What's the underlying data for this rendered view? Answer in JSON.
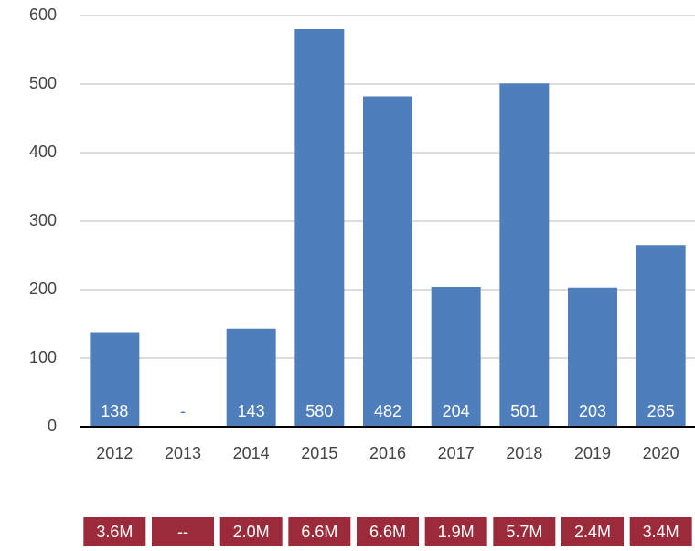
{
  "chart_data": {
    "type": "bar",
    "categories": [
      "2012",
      "2013",
      "2014",
      "2015",
      "2016",
      "2017",
      "2018",
      "2019",
      "2020"
    ],
    "values": [
      138,
      null,
      143,
      580,
      482,
      204,
      501,
      203,
      265
    ],
    "value_labels": [
      "138",
      "-",
      "143",
      "580",
      "482",
      "204",
      "501",
      "203",
      "265"
    ],
    "color": "#4f7ebd",
    "ylim": [
      0,
      600
    ],
    "yticks": [
      0,
      100,
      200,
      300,
      400,
      500,
      600
    ],
    "grid": true,
    "footer_labels": [
      "3.6M",
      "--",
      "2.0M",
      "6.6M",
      "6.6M",
      "1.9M",
      "5.7M",
      "2.4M",
      "3.4M"
    ],
    "footer_color": "#9b2b3a"
  }
}
